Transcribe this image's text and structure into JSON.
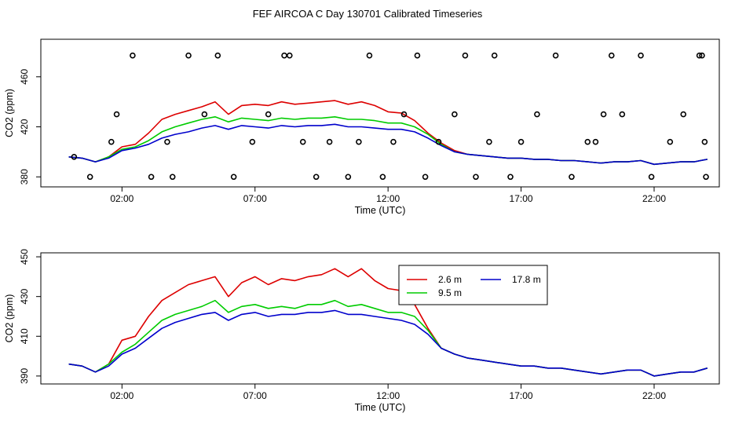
{
  "title": "FEF AIRCOA C  Day 130701  Calibrated Timeseries",
  "colors": {
    "s1": "#dd0000",
    "s2": "#00cc00",
    "s3": "#0000cc"
  },
  "chart_data": [
    {
      "type": "line",
      "panel": "top",
      "title": "FEF AIRCOA C  Day 130701  Calibrated Timeseries",
      "xlabel": "Time (UTC)",
      "ylabel": "CO2 (ppm)",
      "xlim": [
        -1.05,
        24.45
      ],
      "ylim": [
        372,
        490
      ],
      "xticks": [
        2,
        7,
        12,
        17,
        22
      ],
      "xtick_labels": [
        "02:00",
        "07:00",
        "12:00",
        "17:00",
        "22:00"
      ],
      "yticks": [
        380,
        420,
        460
      ],
      "ytick_labels": [
        "380",
        "420",
        "460"
      ],
      "x": [
        0,
        0.5,
        1,
        1.5,
        2,
        2.5,
        3,
        3.5,
        4,
        4.5,
        5,
        5.5,
        6,
        6.5,
        7,
        7.5,
        8,
        8.5,
        9,
        9.5,
        10,
        10.5,
        11,
        11.5,
        12,
        12.5,
        13,
        13.5,
        14,
        14.5,
        15,
        15.5,
        16,
        16.5,
        17,
        17.5,
        18,
        18.5,
        19,
        19.5,
        20,
        20.5,
        21,
        21.5,
        22,
        22.5,
        23,
        23.5,
        24
      ],
      "series": [
        {
          "name": "2.6 m",
          "color": "#dd0000",
          "values": [
            396,
            395,
            392,
            396,
            404,
            406,
            415,
            426,
            430,
            433,
            436,
            440,
            430,
            437,
            438,
            437,
            440,
            438,
            439,
            440,
            441,
            438,
            440,
            437,
            432,
            431,
            425,
            415,
            407,
            401,
            398,
            397,
            396,
            395,
            395,
            394,
            394,
            393,
            393,
            392,
            391,
            392,
            392,
            393,
            390,
            391,
            392,
            392,
            394
          ]
        },
        {
          "name": "9.5 m",
          "color": "#00cc00",
          "values": [
            396,
            395,
            392,
            396,
            402,
            404,
            409,
            416,
            420,
            423,
            426,
            428,
            424,
            427,
            426,
            425,
            427,
            426,
            427,
            427,
            428,
            426,
            426,
            425,
            423,
            423,
            420,
            414,
            406,
            400,
            398,
            397,
            396,
            395,
            395,
            394,
            394,
            393,
            393,
            392,
            391,
            392,
            392,
            393,
            390,
            391,
            392,
            392,
            394
          ]
        },
        {
          "name": "17.8 m",
          "color": "#0000cc",
          "values": [
            396,
            395,
            392,
            395,
            401,
            403,
            406,
            411,
            414,
            416,
            419,
            421,
            418,
            421,
            420,
            419,
            421,
            420,
            421,
            421,
            422,
            420,
            420,
            419,
            418,
            418,
            416,
            411,
            405,
            400,
            398,
            397,
            396,
            395,
            395,
            394,
            394,
            393,
            393,
            392,
            391,
            392,
            392,
            393,
            390,
            391,
            392,
            392,
            394
          ]
        }
      ],
      "markers": {
        "x": [
          0.2,
          0.8,
          1.6,
          1.8,
          2.4,
          3.1,
          3.7,
          3.9,
          4.5,
          5.1,
          5.6,
          6.2,
          6.9,
          7.5,
          8.1,
          8.3,
          8.8,
          9.3,
          9.8,
          10.5,
          10.9,
          11.3,
          11.8,
          12.2,
          12.6,
          13.1,
          13.4,
          13.9,
          14.5,
          14.9,
          15.3,
          15.8,
          16.0,
          16.6,
          17.0,
          17.6,
          18.3,
          18.9,
          19.5,
          19.8,
          20.1,
          20.4,
          20.8,
          21.5,
          21.9,
          22.6,
          23.1,
          23.7,
          23.8,
          23.9,
          23.95
        ],
        "y": [
          396,
          380,
          408,
          430,
          477,
          380,
          408,
          380,
          477,
          430,
          477,
          380,
          408,
          430,
          477,
          477,
          408,
          380,
          408,
          380,
          408,
          477,
          380,
          408,
          430,
          477,
          380,
          408,
          430,
          477,
          380,
          408,
          477,
          380,
          408,
          430,
          477,
          380,
          408,
          408,
          430,
          477,
          430,
          477,
          380,
          408,
          430,
          477,
          477,
          408,
          380
        ]
      }
    },
    {
      "type": "line",
      "panel": "bottom",
      "xlabel": "Time (UTC)",
      "ylabel": "CO2 (ppm)",
      "xlim": [
        -1.05,
        24.45
      ],
      "ylim": [
        386,
        452
      ],
      "xticks": [
        2,
        7,
        12,
        17,
        22
      ],
      "xtick_labels": [
        "02:00",
        "07:00",
        "12:00",
        "17:00",
        "22:00"
      ],
      "yticks": [
        390,
        410,
        430,
        450
      ],
      "ytick_labels": [
        "390",
        "410",
        "430",
        "450"
      ],
      "legend": {
        "position": "top-right",
        "entries": [
          "2.6 m",
          "9.5 m",
          "17.8 m"
        ]
      },
      "x": [
        0,
        0.5,
        1,
        1.5,
        2,
        2.5,
        3,
        3.5,
        4,
        4.5,
        5,
        5.5,
        6,
        6.5,
        7,
        7.5,
        8,
        8.5,
        9,
        9.5,
        10,
        10.5,
        11,
        11.5,
        12,
        12.5,
        13,
        13.5,
        14,
        14.5,
        15,
        15.5,
        16,
        16.5,
        17,
        17.5,
        18,
        18.5,
        19,
        19.5,
        20,
        20.5,
        21,
        21.5,
        22,
        22.5,
        23,
        23.5,
        24
      ],
      "series": [
        {
          "name": "2.6 m",
          "color": "#dd0000",
          "values": [
            396,
            395,
            392,
            396,
            408,
            410,
            420,
            428,
            432,
            436,
            438,
            440,
            430,
            437,
            440,
            436,
            439,
            438,
            440,
            441,
            444,
            440,
            444,
            438,
            434,
            433,
            426,
            414,
            404,
            401,
            399,
            398,
            397,
            396,
            395,
            395,
            394,
            394,
            393,
            392,
            391,
            392,
            393,
            393,
            390,
            391,
            392,
            392,
            394
          ]
        },
        {
          "name": "9.5 m",
          "color": "#00cc00",
          "values": [
            396,
            395,
            392,
            396,
            402,
            406,
            412,
            418,
            421,
            423,
            425,
            428,
            422,
            425,
            426,
            424,
            425,
            424,
            426,
            426,
            428,
            425,
            426,
            424,
            422,
            422,
            420,
            413,
            404,
            401,
            399,
            398,
            397,
            396,
            395,
            395,
            394,
            394,
            393,
            392,
            391,
            392,
            393,
            393,
            390,
            391,
            392,
            392,
            394
          ]
        },
        {
          "name": "17.8 m",
          "color": "#0000cc",
          "values": [
            396,
            395,
            392,
            395,
            401,
            404,
            409,
            414,
            417,
            419,
            421,
            422,
            418,
            421,
            422,
            420,
            421,
            421,
            422,
            422,
            423,
            421,
            421,
            420,
            419,
            418,
            416,
            411,
            404,
            401,
            399,
            398,
            397,
            396,
            395,
            395,
            394,
            394,
            393,
            392,
            391,
            392,
            393,
            393,
            390,
            391,
            392,
            392,
            394
          ]
        }
      ]
    }
  ]
}
